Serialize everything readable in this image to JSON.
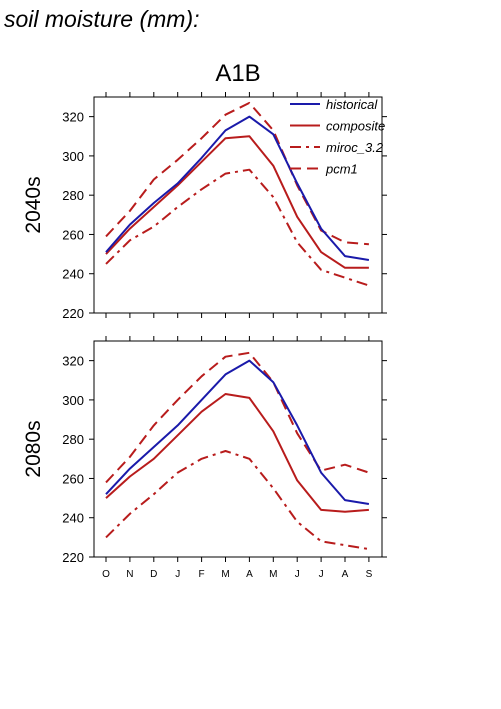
{
  "title": "soil moisture (mm):",
  "chart_data": {
    "type": "line",
    "scenario": "A1B",
    "categories": [
      "O",
      "N",
      "D",
      "J",
      "F",
      "M",
      "A",
      "M",
      "J",
      "J",
      "A",
      "S"
    ],
    "ylim": [
      220,
      330
    ],
    "yticks": [
      220,
      240,
      260,
      280,
      300,
      320
    ],
    "colors": {
      "historical": "#1a1aaa",
      "model": "#b81c1c"
    },
    "legend": {
      "placement": "top-right",
      "entries": [
        {
          "name": "historical",
          "style": "solid",
          "color": "#1a1aaa"
        },
        {
          "name": "composite",
          "style": "solid",
          "color": "#b81c1c"
        },
        {
          "name": "miroc_3.2",
          "style": "dashdot",
          "color": "#b81c1c"
        },
        {
          "name": "pcm1",
          "style": "dashed",
          "color": "#b81c1c"
        }
      ]
    },
    "panels": [
      {
        "label": "2040s",
        "series": [
          {
            "name": "historical",
            "values": [
              251,
              265,
              276,
              286,
              299,
              313,
              320,
              311,
              286,
              263,
              249,
              247
            ]
          },
          {
            "name": "composite",
            "values": [
              250,
              263,
              274,
              285,
              297,
              309,
              310,
              295,
              269,
              251,
              243,
              243
            ]
          },
          {
            "name": "miroc_3.2",
            "values": [
              245,
              257,
              264,
              274,
              283,
              291,
              293,
              279,
              256,
              242,
              238,
              234
            ]
          },
          {
            "name": "pcm1",
            "values": [
              259,
              272,
              288,
              298,
              309,
              321,
              327,
              313,
              285,
              262,
              256,
              255
            ]
          }
        ]
      },
      {
        "label": "2080s",
        "series": [
          {
            "name": "historical",
            "values": [
              252,
              265,
              276,
              287,
              300,
              313,
              320,
              309,
              287,
              263,
              249,
              247
            ]
          },
          {
            "name": "composite",
            "values": [
              250,
              261,
              270,
              282,
              294,
              303,
              301,
              284,
              259,
              244,
              243,
              244
            ]
          },
          {
            "name": "miroc_3.2",
            "values": [
              230,
              242,
              252,
              263,
              270,
              274,
              270,
              255,
              238,
              228,
              226,
              224
            ]
          },
          {
            "name": "pcm1",
            "values": [
              258,
              271,
              287,
              300,
              312,
              322,
              324,
              309,
              283,
              264,
              267,
              263
            ]
          }
        ]
      }
    ]
  }
}
